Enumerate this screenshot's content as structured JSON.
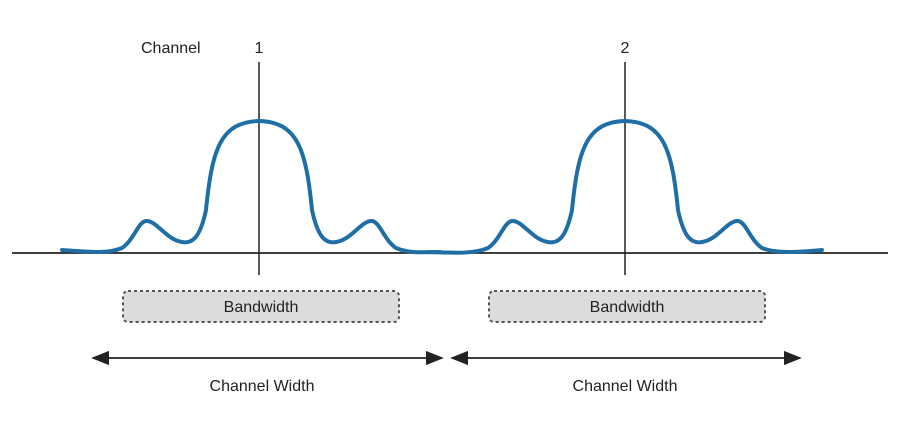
{
  "diagram": {
    "channel_caption": "Channel",
    "channels": [
      {
        "number": "1",
        "bandwidth_label": "Bandwidth",
        "width_label": "Channel Width"
      },
      {
        "number": "2",
        "bandwidth_label": "Bandwidth",
        "width_label": "Channel Width"
      }
    ],
    "colors": {
      "signal": "#1f6fa6",
      "axis": "#222222",
      "bandwidth_fill": "#dcdcdc",
      "bandwidth_border": "#555555"
    }
  }
}
